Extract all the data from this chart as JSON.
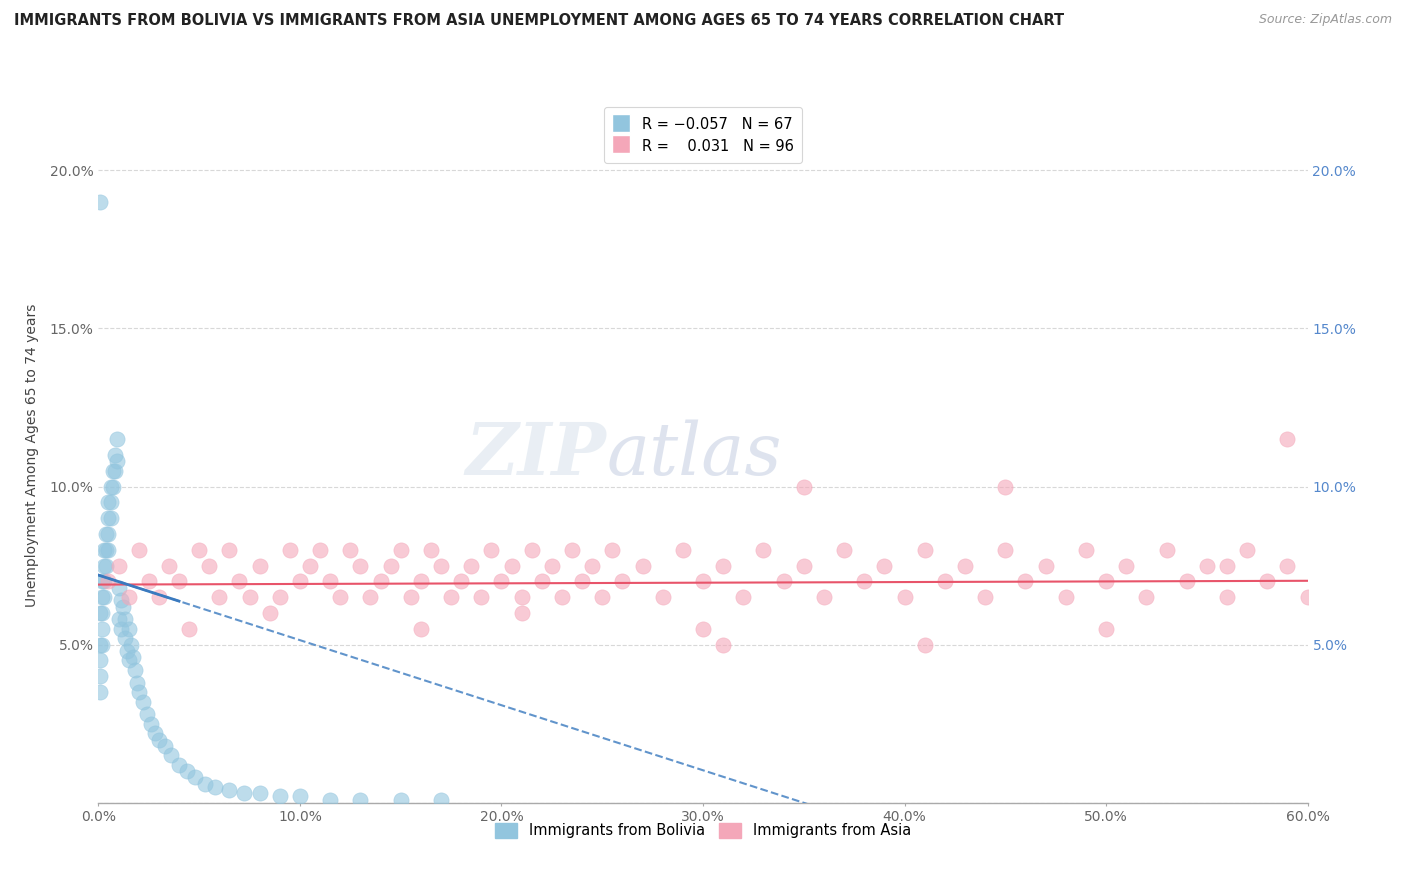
{
  "title": "IMMIGRANTS FROM BOLIVIA VS IMMIGRANTS FROM ASIA UNEMPLOYMENT AMONG AGES 65 TO 74 YEARS CORRELATION CHART",
  "source": "Source: ZipAtlas.com",
  "ylabel": "Unemployment Among Ages 65 to 74 years",
  "xlabel_bolivia": "Immigrants from Bolivia",
  "xlabel_asia": "Immigrants from Asia",
  "bolivia_R": -0.057,
  "bolivia_N": 67,
  "asia_R": 0.031,
  "asia_N": 96,
  "xlim": [
    0.0,
    0.6
  ],
  "ylim": [
    0.0,
    0.22
  ],
  "bolivia_color": "#92c5de",
  "asia_color": "#f4a7b9",
  "bolivia_line_color": "#3a7abf",
  "asia_line_color": "#e8546a",
  "background_color": "#ffffff",
  "grid_color": "#d8d8d8",
  "bolivia_x": [
    0.001,
    0.001,
    0.001,
    0.001,
    0.001,
    0.002,
    0.002,
    0.002,
    0.002,
    0.002,
    0.003,
    0.003,
    0.003,
    0.003,
    0.004,
    0.004,
    0.004,
    0.005,
    0.005,
    0.005,
    0.005,
    0.006,
    0.006,
    0.006,
    0.007,
    0.007,
    0.008,
    0.008,
    0.009,
    0.009,
    0.01,
    0.01,
    0.011,
    0.011,
    0.012,
    0.013,
    0.013,
    0.014,
    0.015,
    0.015,
    0.016,
    0.017,
    0.018,
    0.019,
    0.02,
    0.022,
    0.024,
    0.026,
    0.028,
    0.03,
    0.033,
    0.036,
    0.04,
    0.044,
    0.048,
    0.053,
    0.058,
    0.065,
    0.072,
    0.08,
    0.09,
    0.1,
    0.115,
    0.13,
    0.15,
    0.17,
    0.001
  ],
  "bolivia_y": [
    0.06,
    0.05,
    0.045,
    0.04,
    0.035,
    0.07,
    0.065,
    0.06,
    0.055,
    0.05,
    0.08,
    0.075,
    0.07,
    0.065,
    0.085,
    0.08,
    0.075,
    0.095,
    0.09,
    0.085,
    0.08,
    0.1,
    0.095,
    0.09,
    0.105,
    0.1,
    0.11,
    0.105,
    0.115,
    0.108,
    0.068,
    0.058,
    0.064,
    0.055,
    0.062,
    0.058,
    0.052,
    0.048,
    0.055,
    0.045,
    0.05,
    0.046,
    0.042,
    0.038,
    0.035,
    0.032,
    0.028,
    0.025,
    0.022,
    0.02,
    0.018,
    0.015,
    0.012,
    0.01,
    0.008,
    0.006,
    0.005,
    0.004,
    0.003,
    0.003,
    0.002,
    0.002,
    0.001,
    0.001,
    0.001,
    0.001,
    0.19
  ],
  "asia_x": [
    0.005,
    0.01,
    0.015,
    0.02,
    0.025,
    0.03,
    0.035,
    0.04,
    0.05,
    0.055,
    0.06,
    0.065,
    0.07,
    0.075,
    0.08,
    0.09,
    0.095,
    0.1,
    0.105,
    0.11,
    0.115,
    0.12,
    0.125,
    0.13,
    0.135,
    0.14,
    0.145,
    0.15,
    0.155,
    0.16,
    0.165,
    0.17,
    0.175,
    0.18,
    0.185,
    0.19,
    0.195,
    0.2,
    0.205,
    0.21,
    0.215,
    0.22,
    0.225,
    0.23,
    0.235,
    0.24,
    0.245,
    0.25,
    0.255,
    0.26,
    0.27,
    0.28,
    0.29,
    0.3,
    0.31,
    0.32,
    0.33,
    0.34,
    0.35,
    0.36,
    0.37,
    0.38,
    0.39,
    0.4,
    0.41,
    0.42,
    0.43,
    0.44,
    0.45,
    0.46,
    0.47,
    0.48,
    0.49,
    0.5,
    0.51,
    0.52,
    0.53,
    0.54,
    0.55,
    0.56,
    0.57,
    0.58,
    0.59,
    0.6,
    0.045,
    0.085,
    0.16,
    0.21,
    0.3,
    0.41,
    0.5,
    0.59,
    0.35,
    0.45,
    0.56,
    0.31
  ],
  "asia_y": [
    0.07,
    0.075,
    0.065,
    0.08,
    0.07,
    0.065,
    0.075,
    0.07,
    0.08,
    0.075,
    0.065,
    0.08,
    0.07,
    0.065,
    0.075,
    0.065,
    0.08,
    0.07,
    0.075,
    0.08,
    0.07,
    0.065,
    0.08,
    0.075,
    0.065,
    0.07,
    0.075,
    0.08,
    0.065,
    0.07,
    0.08,
    0.075,
    0.065,
    0.07,
    0.075,
    0.065,
    0.08,
    0.07,
    0.075,
    0.065,
    0.08,
    0.07,
    0.075,
    0.065,
    0.08,
    0.07,
    0.075,
    0.065,
    0.08,
    0.07,
    0.075,
    0.065,
    0.08,
    0.07,
    0.075,
    0.065,
    0.08,
    0.07,
    0.075,
    0.065,
    0.08,
    0.07,
    0.075,
    0.065,
    0.08,
    0.07,
    0.075,
    0.065,
    0.08,
    0.07,
    0.075,
    0.065,
    0.08,
    0.07,
    0.075,
    0.065,
    0.08,
    0.07,
    0.075,
    0.065,
    0.08,
    0.07,
    0.075,
    0.065,
    0.055,
    0.06,
    0.055,
    0.06,
    0.055,
    0.05,
    0.055,
    0.115,
    0.1,
    0.1,
    0.075,
    0.05
  ]
}
